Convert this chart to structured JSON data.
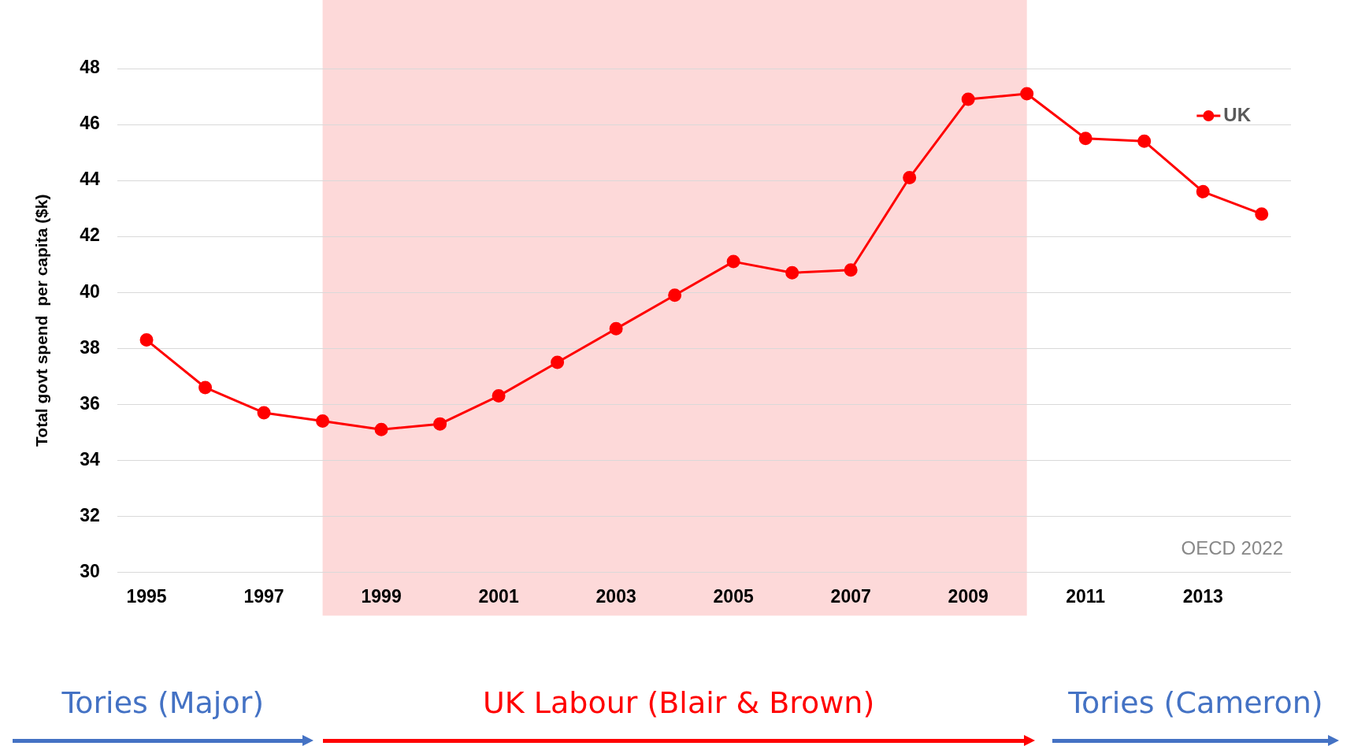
{
  "chart_data": {
    "type": "line",
    "ylabel": "Total govt spend  per capita ($k)",
    "x": [
      1995,
      1996,
      1997,
      1998,
      1999,
      2000,
      2001,
      2002,
      2003,
      2004,
      2005,
      2006,
      2007,
      2008,
      2009,
      2010,
      2011,
      2012,
      2013,
      2014
    ],
    "series": [
      {
        "name": "UK",
        "color": "#ff0000",
        "values": [
          38.3,
          36.6,
          35.7,
          35.4,
          35.1,
          35.3,
          36.3,
          37.5,
          38.7,
          39.9,
          41.1,
          40.7,
          40.8,
          44.1,
          46.9,
          47.1,
          45.5,
          45.4,
          43.6,
          42.8
        ]
      }
    ],
    "xlim": [
      1994.5,
      2014.5
    ],
    "xticks": [
      1995,
      1997,
      1999,
      2001,
      2003,
      2005,
      2007,
      2009,
      2011,
      2013
    ],
    "ylim": [
      30,
      48
    ],
    "yticks": [
      30,
      32,
      34,
      36,
      38,
      40,
      42,
      44,
      46,
      48
    ],
    "grid": "y",
    "legend": "top right",
    "marker": "circle",
    "line_style": "solid",
    "bands": [
      {
        "axis": "x",
        "from": 1998,
        "to": 2010,
        "color": "#fdd9d9"
      }
    ],
    "annotations": [
      "Tories (Major)",
      "UK Labour (Blair & Brown)",
      "Tories (Cameron)",
      "OECD 2022"
    ]
  }
}
